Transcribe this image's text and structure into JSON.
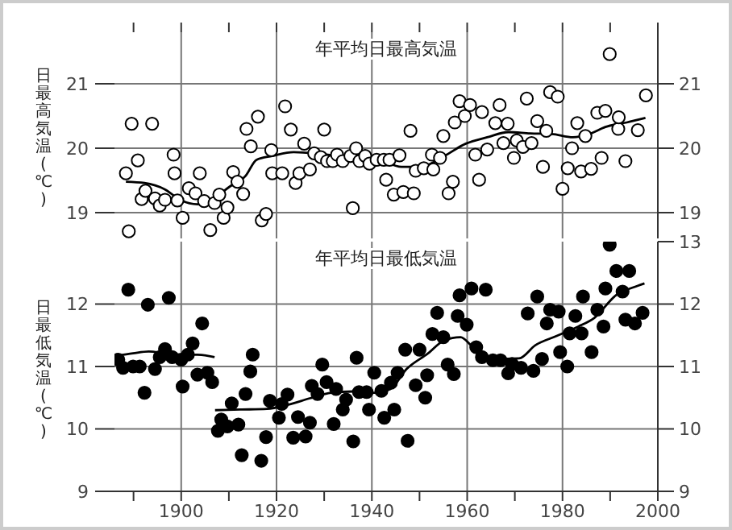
{
  "chart_data": [
    {
      "type": "scatter",
      "title": "年平均日最高気温",
      "ylabel": "日最高気温(℃)",
      "xlim": [
        1886,
        2000
      ],
      "xticks": [
        1890,
        1900,
        1910,
        1920,
        1930,
        1940,
        1950,
        1960,
        1970,
        1980,
        1990,
        2000
      ],
      "ylim": [
        18.6,
        21.8
      ],
      "yticks": [
        19,
        20,
        21
      ],
      "y2lim": [
        18.6,
        21.8
      ],
      "y2ticks": [
        19,
        20,
        21
      ],
      "tick_labels": "y",
      "grid": true,
      "marker": "circle",
      "legend": false,
      "series": [
        {
          "color": "#000000",
          "x": [
            1888.4,
            1889,
            1889.6,
            1890.9,
            1891.7,
            1892.5,
            1893.9,
            1894.5,
            1895.5,
            1896.6,
            1898.4,
            1898.6,
            1899.2,
            1900.3,
            1901.6,
            1903,
            1903.9,
            1904.8,
            1906.1,
            1907,
            1908,
            1908.9,
            1909.7,
            1910.9,
            1911.8,
            1913,
            1913.7,
            1914.6,
            1916.1,
            1916.9,
            1917.8,
            1918.9,
            1919.1,
            1921.2,
            1921.8,
            1923,
            1924,
            1924.8,
            1925.8,
            1927,
            1927.9,
            1929.3,
            1930,
            1930.6,
            1931.8,
            1932.7,
            1933.9,
            1935.5,
            1936,
            1936.7,
            1937.4,
            1938.6,
            1939.5,
            1941,
            1942.5,
            1943,
            1943.7,
            1944.6,
            1945.8,
            1946.6,
            1948.1,
            1948.8,
            1949.2,
            1950.9,
            1952.6,
            1952.9,
            1954.3,
            1955,
            1956.1,
            1957,
            1957.4,
            1958.4,
            1959.5,
            1960.6,
            1961.7,
            1962.5,
            1963.1,
            1964.2,
            1965.9,
            1966.8,
            1967.6,
            1968.5,
            1969.8,
            1970.4,
            1971.7,
            1972.5,
            1973.5,
            1974.7,
            1975.9,
            1976.6,
            1977.4,
            1979,
            1980,
            1981.1,
            1982,
            1983.1,
            1983.9,
            1984.8,
            1986,
            1987.3,
            1988.2,
            1989,
            1989.9,
            1991.7,
            1991.8,
            1993.2,
            1995.8,
            1997.5
          ],
          "values": [
            19.61,
            18.71,
            20.38,
            19.81,
            19.21,
            19.34,
            20.38,
            19.22,
            19.11,
            19.2,
            19.9,
            19.61,
            19.19,
            18.92,
            19.38,
            19.3,
            19.61,
            19.18,
            18.73,
            19.15,
            19.28,
            18.92,
            19.08,
            19.63,
            19.48,
            19.29,
            20.3,
            20.03,
            20.49,
            18.88,
            18.98,
            19.97,
            19.61,
            19.61,
            20.65,
            20.29,
            19.46,
            19.61,
            20.07,
            19.67,
            19.92,
            19.86,
            20.29,
            19.8,
            19.8,
            19.9,
            19.8,
            19.88,
            19.07,
            20.0,
            19.8,
            19.88,
            19.76,
            19.82,
            19.82,
            19.51,
            19.82,
            19.28,
            19.89,
            19.32,
            20.27,
            19.3,
            19.65,
            19.69,
            19.9,
            19.67,
            19.85,
            20.19,
            19.3,
            19.48,
            20.4,
            20.73,
            20.5,
            20.67,
            19.9,
            19.51,
            20.56,
            19.98,
            20.39,
            20.67,
            20.08,
            20.38,
            19.85,
            20.12,
            20.02,
            20.77,
            20.08,
            20.42,
            19.71,
            20.27,
            20.87,
            20.8,
            19.37,
            19.69,
            20.0,
            20.39,
            19.64,
            20.19,
            19.68,
            20.55,
            19.85,
            20.58,
            21.46,
            20.3,
            20.48,
            19.8,
            20.28,
            20.82
          ]
        },
        {
          "type": "line",
          "color": "#000000",
          "marker": "none",
          "x": [
            1888.4,
            1892.3,
            1896.6,
            1900,
            1903.4,
            1906.8,
            1910.1,
            1913.5,
            1915.8,
            1919.1,
            1923.6,
            1928.2,
            1932.7,
            1937.2,
            1941.7,
            1946.2,
            1950.7,
            1955.2,
            1959.7,
            1964.2,
            1968.7,
            1973.2,
            1977.7,
            1982.2,
            1985.6,
            1989,
            1993.5,
            1997.4
          ],
          "values": [
            19.48,
            19.46,
            19.36,
            19.19,
            19.13,
            19.22,
            19.4,
            19.57,
            19.82,
            19.88,
            19.94,
            19.92,
            19.88,
            19.86,
            19.82,
            19.71,
            19.72,
            19.88,
            20.07,
            20.17,
            20.25,
            20.23,
            20.22,
            20.17,
            20.22,
            20.33,
            20.4,
            20.47
          ]
        }
      ]
    },
    {
      "type": "scatter",
      "title": "年平均日最低気温",
      "ylabel": "日最低気温(℃)",
      "xlim": [
        1886,
        2000
      ],
      "xticks": [
        {
          "value": 1890,
          "label": null
        },
        {
          "value": 1900,
          "label": "1900"
        },
        {
          "value": 1910,
          "label": null
        },
        {
          "value": 1920,
          "label": "1920"
        },
        {
          "value": 1930,
          "label": null
        },
        {
          "value": 1940,
          "label": "1940"
        },
        {
          "value": 1950,
          "label": null
        },
        {
          "value": 1960,
          "label": "1960"
        },
        {
          "value": 1970,
          "label": null
        },
        {
          "value": 1980,
          "label": "1980"
        },
        {
          "value": 1990,
          "label": null
        },
        {
          "value": 2000,
          "label": "2000"
        }
      ],
      "ylim": [
        9,
        13
      ],
      "yticks": [
        9,
        10,
        11,
        12
      ],
      "y2lim": [
        9,
        13
      ],
      "y2ticks": [
        9,
        10,
        11,
        12,
        13
      ],
      "grid": true,
      "marker": "circle",
      "legend": false,
      "series": [
        {
          "color": "#000000",
          "x": [
            1886.8,
            1887.8,
            1888.9,
            1889.9,
            1891.3,
            1892.3,
            1893,
            1894.5,
            1895.5,
            1896.6,
            1897.4,
            1898.1,
            1900,
            1900.3,
            1901.4,
            1902.4,
            1903.4,
            1904.4,
            1905.5,
            1906.5,
            1907.7,
            1908.4,
            1909.7,
            1910.6,
            1912,
            1912.7,
            1913.5,
            1914.5,
            1915,
            1916.8,
            1917.8,
            1918.6,
            1920.5,
            1921.1,
            1922.3,
            1923.5,
            1924.5,
            1926.1,
            1927,
            1927.4,
            1928.6,
            1929.6,
            1930.5,
            1932,
            1932.5,
            1933.9,
            1934.6,
            1936.1,
            1936.8,
            1937.3,
            1938.9,
            1939.4,
            1940.5,
            1942,
            1942.6,
            1944,
            1944.7,
            1945.4,
            1947,
            1947.5,
            1949.2,
            1950,
            1951.2,
            1951.6,
            1952.7,
            1953.7,
            1955,
            1955.9,
            1957.2,
            1958,
            1958.4,
            1959.9,
            1960.9,
            1961.9,
            1963.1,
            1963.9,
            1965.4,
            1967,
            1968.6,
            1969.4,
            1971.3,
            1972.7,
            1973.9,
            1974.7,
            1975.7,
            1976.7,
            1977.4,
            1979.2,
            1979.5,
            1981,
            1981.5,
            1982.7,
            1984,
            1984.3,
            1986.1,
            1987.3,
            1988.6,
            1989,
            1989.9,
            1991.3,
            1992.6,
            1993.2,
            1994,
            1995.2,
            1996.8
          ],
          "values": [
            11.11,
            10.98,
            12.23,
            11.0,
            11.0,
            10.58,
            11.99,
            10.96,
            11.15,
            11.28,
            12.1,
            11.15,
            11.11,
            10.68,
            11.19,
            11.37,
            10.87,
            11.69,
            10.9,
            10.75,
            9.97,
            10.15,
            10.04,
            10.41,
            10.07,
            9.58,
            10.56,
            10.92,
            11.19,
            9.49,
            9.87,
            10.45,
            10.18,
            10.4,
            10.55,
            9.86,
            10.19,
            9.88,
            10.1,
            10.69,
            10.56,
            11.03,
            10.75,
            10.08,
            10.64,
            10.31,
            10.47,
            9.8,
            11.14,
            10.59,
            10.59,
            10.31,
            10.9,
            10.61,
            10.18,
            10.74,
            10.31,
            10.9,
            11.27,
            9.81,
            10.7,
            11.27,
            10.5,
            10.86,
            11.52,
            11.86,
            11.47,
            11.03,
            10.88,
            11.81,
            12.14,
            11.67,
            12.25,
            11.31,
            11.15,
            12.23,
            11.1,
            11.1,
            10.89,
            11.04,
            10.98,
            11.85,
            10.93,
            12.12,
            11.12,
            11.69,
            11.91,
            11.88,
            11.23,
            11.0,
            11.53,
            11.81,
            11.53,
            12.12,
            11.23,
            11.91,
            11.64,
            12.25,
            12.95,
            12.53,
            12.2,
            11.75,
            12.53,
            11.69,
            11.86
          ]
        },
        {
          "type": "line",
          "color": "#000000",
          "marker": "none",
          "x": [
            1886.5,
            1889.9,
            1893.2,
            1896.6,
            1900,
            1903.4,
            1907
          ],
          "values": [
            11.17,
            11.21,
            11.24,
            11.21,
            11.19,
            11.19,
            11.15
          ]
        },
        {
          "type": "line",
          "color": "#000000",
          "marker": "none",
          "x": [
            1907.1,
            1912.4,
            1918,
            1922.5,
            1927,
            1931.5,
            1936,
            1940.5,
            1943.9,
            1947.3,
            1951.8,
            1955.2,
            1958.6,
            1960.8,
            1963.1,
            1966.4,
            1970.9,
            1974.3,
            1978.8,
            1983.3,
            1986.7,
            1991.2,
            1995.7,
            1997.2
          ],
          "values": [
            10.3,
            10.31,
            10.32,
            10.39,
            10.49,
            10.58,
            10.6,
            10.58,
            10.64,
            10.96,
            11.21,
            11.42,
            11.47,
            11.34,
            11.17,
            11.12,
            11.13,
            11.34,
            11.49,
            11.64,
            11.78,
            12.14,
            12.29,
            12.33
          ]
        }
      ]
    }
  ]
}
